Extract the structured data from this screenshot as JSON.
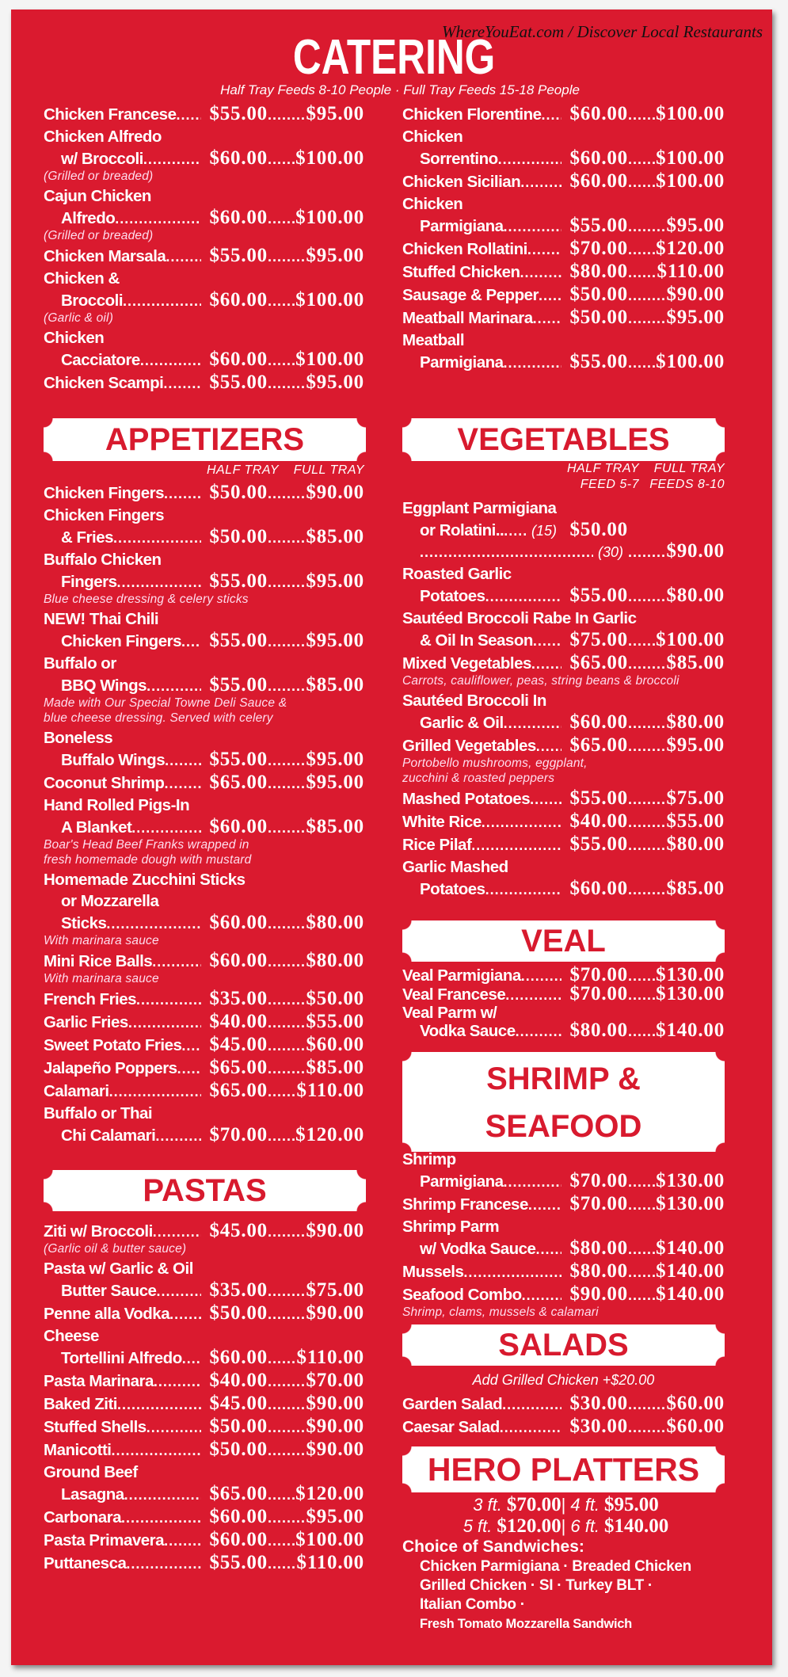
{
  "watermark": "WhereYouEat.com / Discover Local Restaurants",
  "title": "CATERING",
  "subtitle": "Half Tray Feeds 8-10 People · Full Tray Feeds 15-18 People",
  "colors": {
    "background": "#da1a2f",
    "text": "#ffffff",
    "header_box": "#ffffff",
    "header_text": "#d81a2e"
  },
  "sections": {
    "catering_left": {
      "items": [
        {
          "rows": [
            {
              "name": "Chicken Francese",
              "half": "$55.00",
              "full": "$95.00"
            }
          ]
        },
        {
          "rows": [
            {
              "name": "Chicken Alfredo"
            },
            {
              "name": "w/ Broccoli",
              "half": "$60.00",
              "full": "$100.00"
            }
          ],
          "note": [
            "(Grilled or breaded)"
          ]
        },
        {
          "rows": [
            {
              "name": "Cajun Chicken"
            },
            {
              "name": "Alfredo",
              "half": "$60.00",
              "full": "$100.00"
            }
          ],
          "note": [
            "(Grilled or breaded)"
          ]
        },
        {
          "rows": [
            {
              "name": "Chicken Marsala",
              "half": "$55.00",
              "full": "$95.00"
            }
          ]
        },
        {
          "rows": [
            {
              "name": "Chicken &"
            },
            {
              "name": "Broccoli",
              "half": "$60.00",
              "full": "$100.00"
            }
          ],
          "note": [
            "(Garlic & oil)"
          ]
        },
        {
          "rows": [
            {
              "name": "Chicken"
            },
            {
              "name": "Cacciatore",
              "half": "$60.00",
              "full": "$100.00"
            }
          ]
        },
        {
          "rows": [
            {
              "name": "Chicken Scampi",
              "half": "$55.00",
              "full": "$95.00"
            }
          ]
        }
      ]
    },
    "catering_right": {
      "items": [
        {
          "rows": [
            {
              "name": "Chicken Florentine",
              "half": "$60.00",
              "full": "$100.00"
            }
          ]
        },
        {
          "rows": [
            {
              "name": "Chicken"
            },
            {
              "name": "Sorrentino",
              "half": "$60.00",
              "full": "$100.00"
            }
          ]
        },
        {
          "rows": [
            {
              "name": "Chicken Sicilian",
              "half": "$60.00",
              "full": "$100.00"
            }
          ]
        },
        {
          "rows": [
            {
              "name": "Chicken"
            },
            {
              "name": "Parmigiana",
              "half": "$55.00",
              "full": "$95.00"
            }
          ]
        },
        {
          "rows": [
            {
              "name": "Chicken Rollatini",
              "half": "$70.00",
              "full": "$120.00"
            }
          ]
        },
        {
          "rows": [
            {
              "name": "Stuffed Chicken",
              "half": "$80.00",
              "full": "$110.00"
            }
          ]
        },
        {
          "rows": [
            {
              "name": "Sausage & Pepper",
              "half": "$50.00",
              "full": "$90.00"
            }
          ]
        },
        {
          "rows": [
            {
              "name": "Meatball Marinara",
              "half": "$50.00",
              "full": "$95.00"
            }
          ]
        },
        {
          "rows": [
            {
              "name": "Meatball"
            },
            {
              "name": "Parmigiana",
              "half": "$55.00",
              "full": "$100.00"
            }
          ]
        }
      ]
    },
    "appetizers": {
      "title": "APPETIZERS",
      "labels": [
        "HALF TRAY",
        "FULL TRAY"
      ],
      "items": [
        {
          "rows": [
            {
              "name": "Chicken Fingers",
              "half": "$50.00",
              "full": "$90.00"
            }
          ]
        },
        {
          "rows": [
            {
              "name": "Chicken Fingers"
            },
            {
              "name": "& Fries",
              "half": "$50.00",
              "full": "$85.00"
            }
          ]
        },
        {
          "rows": [
            {
              "name": "Buffalo Chicken"
            },
            {
              "name": "Fingers",
              "half": "$55.00",
              "full": "$95.00"
            }
          ],
          "note": [
            "Blue cheese dressing & celery sticks"
          ]
        },
        {
          "rows": [
            {
              "name": "NEW! Thai Chili"
            },
            {
              "name": "Chicken Fingers",
              "half": "$55.00",
              "full": "$95.00"
            }
          ]
        },
        {
          "rows": [
            {
              "name": "Buffalo or"
            },
            {
              "name": "BBQ Wings",
              "half": "$55.00",
              "full": "$85.00"
            }
          ],
          "note": [
            "Made with Our Special Towne Deli Sauce &",
            "blue cheese dressing. Served with celery"
          ]
        },
        {
          "rows": [
            {
              "name": "Boneless"
            },
            {
              "name": "Buffalo Wings",
              "half": "$55.00",
              "full": "$95.00"
            }
          ]
        },
        {
          "rows": [
            {
              "name": "Coconut Shrimp",
              "half": "$65.00",
              "full": "$95.00"
            }
          ]
        },
        {
          "rows": [
            {
              "name": "Hand Rolled Pigs-In"
            },
            {
              "name": "A Blanket",
              "half": "$60.00",
              "full": "$85.00"
            }
          ],
          "note": [
            "Boar's Head Beef Franks wrapped in",
            "fresh homemade dough with mustard"
          ]
        },
        {
          "rows": [
            {
              "name": "Homemade Zucchini Sticks"
            },
            {
              "name": "or Mozzarella"
            },
            {
              "name": "Sticks",
              "half": "$60.00",
              "full": "$80.00"
            }
          ],
          "note": [
            "With marinara sauce"
          ]
        },
        {
          "rows": [
            {
              "name": "Mini Rice Balls",
              "half": "$60.00",
              "full": "$80.00"
            }
          ],
          "note": [
            "With marinara sauce"
          ]
        },
        {
          "rows": [
            {
              "name": "French Fries",
              "half": "$35.00",
              "full": "$50.00"
            }
          ]
        },
        {
          "rows": [
            {
              "name": "Garlic Fries",
              "half": "$40.00",
              "full": "$55.00"
            }
          ]
        },
        {
          "rows": [
            {
              "name": "Sweet Potato Fries",
              "half": "$45.00",
              "full": "$60.00"
            }
          ]
        },
        {
          "rows": [
            {
              "name": "Jalapeño Poppers",
              "half": "$65.00",
              "full": "$85.00"
            }
          ]
        },
        {
          "rows": [
            {
              "name": "Calamari",
              "half": "$65.00",
              "full": "$110.00"
            }
          ]
        },
        {
          "rows": [
            {
              "name": "Buffalo or Thai"
            },
            {
              "name": "Chi Calamari",
              "half": "$70.00",
              "full": "$120.00"
            }
          ]
        }
      ]
    },
    "pastas": {
      "title": "PASTAS",
      "items": [
        {
          "rows": [
            {
              "name": "Ziti w/ Broccoli",
              "half": "$45.00",
              "full": "$90.00"
            }
          ],
          "note": [
            "(Garlic oil & butter sauce)"
          ]
        },
        {
          "rows": [
            {
              "name": "Pasta w/ Garlic & Oil"
            },
            {
              "name": "Butter Sauce",
              "half": "$35.00",
              "full": "$75.00"
            }
          ]
        },
        {
          "rows": [
            {
              "name": "Penne alla Vodka",
              "half": "$50.00",
              "full": "$90.00"
            }
          ]
        },
        {
          "rows": [
            {
              "name": "Cheese"
            },
            {
              "name": "Tortellini Alfredo",
              "half": "$60.00",
              "full": "$110.00"
            }
          ]
        },
        {
          "rows": [
            {
              "name": "Pasta Marinara",
              "half": "$40.00",
              "full": "$70.00"
            }
          ]
        },
        {
          "rows": [
            {
              "name": "Baked Ziti",
              "half": "$45.00",
              "full": "$90.00"
            }
          ]
        },
        {
          "rows": [
            {
              "name": "Stuffed Shells",
              "half": "$50.00",
              "full": "$90.00"
            }
          ]
        },
        {
          "rows": [
            {
              "name": "Manicotti",
              "half": "$50.00",
              "full": "$90.00"
            }
          ]
        },
        {
          "rows": [
            {
              "name": "Ground Beef"
            },
            {
              "name": "Lasagna",
              "half": "$65.00",
              "full": "$120.00"
            }
          ]
        },
        {
          "rows": [
            {
              "name": "Carbonara",
              "half": "$60.00",
              "full": "$95.00"
            }
          ]
        },
        {
          "rows": [
            {
              "name": "Pasta Primavera",
              "half": "$60.00",
              "full": "$100.00"
            }
          ]
        },
        {
          "rows": [
            {
              "name": "Puttanesca",
              "half": "$55.00",
              "full": "$110.00"
            }
          ]
        }
      ]
    },
    "vegetables": {
      "title": "VEGETABLES",
      "labels": [
        "HALF TRAY",
        "FULL TRAY"
      ],
      "sublabels": [
        "FEED 5-7",
        "FEEDS 8-10"
      ],
      "items": [
        {
          "rows": [
            {
              "name": "Eggplant Parmigiana"
            },
            {
              "name": "or Rolatini..",
              "qty": "(15)",
              "half": "$50.00"
            },
            {
              "name": "",
              "qty": "(30)",
              "full": "$90.00"
            }
          ]
        },
        {
          "rows": [
            {
              "name": "Roasted Garlic"
            },
            {
              "name": "Potatoes",
              "half": "$55.00",
              "full": "$80.00"
            }
          ]
        },
        {
          "rows": [
            {
              "name": "Sautéed Broccoli Rabe In Garlic"
            },
            {
              "name": "& Oil In Season",
              "half": "$75.00",
              "full": "$100.00"
            }
          ]
        },
        {
          "rows": [
            {
              "name": "Mixed Vegetables",
              "half": "$65.00",
              "full": "$85.00"
            }
          ],
          "note": [
            "Carrots, cauliflower, peas, string beans & broccoli"
          ]
        },
        {
          "rows": [
            {
              "name": "Sautéed Broccoli In"
            },
            {
              "name": "Garlic & Oil",
              "half": "$60.00",
              "full": "$80.00"
            }
          ]
        },
        {
          "rows": [
            {
              "name": "Grilled Vegetables",
              "half": "$65.00",
              "full": "$95.00"
            }
          ],
          "note": [
            "Portobello mushrooms, eggplant,",
            "zucchini & roasted peppers"
          ]
        },
        {
          "rows": [
            {
              "name": "Mashed Potatoes",
              "half": "$55.00",
              "full": "$75.00"
            }
          ]
        },
        {
          "rows": [
            {
              "name": "White Rice",
              "half": "$40.00",
              "full": "$55.00"
            }
          ]
        },
        {
          "rows": [
            {
              "name": "Rice Pilaf",
              "half": "$55.00",
              "full": "$80.00"
            }
          ]
        },
        {
          "rows": [
            {
              "name": "Garlic Mashed"
            },
            {
              "name": "Potatoes",
              "half": "$60.00",
              "full": "$85.00"
            }
          ]
        }
      ]
    },
    "veal": {
      "title": "VEAL",
      "items": [
        {
          "rows": [
            {
              "name": "Veal Parmigiana",
              "half": "$70.00",
              "full": "$130.00"
            }
          ]
        },
        {
          "rows": [
            {
              "name": "Veal Francese",
              "half": "$70.00",
              "full": "$130.00"
            }
          ]
        },
        {
          "rows": [
            {
              "name": "Veal Parm w/"
            },
            {
              "name": "Vodka Sauce",
              "half": "$80.00",
              "full": "$140.00"
            }
          ]
        }
      ]
    },
    "seafood": {
      "title_lines": [
        "SHRIMP &",
        "SEAFOOD"
      ],
      "items": [
        {
          "rows": [
            {
              "name": "Shrimp"
            },
            {
              "name": "Parmigiana",
              "half": "$70.00",
              "full": "$130.00"
            }
          ]
        },
        {
          "rows": [
            {
              "name": "Shrimp Francese",
              "half": "$70.00",
              "full": "$130.00"
            }
          ]
        },
        {
          "rows": [
            {
              "name": "Shrimp Parm"
            },
            {
              "name": "w/ Vodka Sauce",
              "half": "$80.00",
              "full": "$140.00"
            }
          ]
        },
        {
          "rows": [
            {
              "name": "Mussels",
              "half": "$80.00",
              "full": "$140.00"
            }
          ]
        },
        {
          "rows": [
            {
              "name": "Seafood Combo",
              "half": "$90.00",
              "full": "$140.00"
            }
          ],
          "note": [
            "Shrimp, clams, mussels & calamari"
          ]
        }
      ]
    },
    "salads": {
      "title": "SALADS",
      "addon": "Add Grilled Chicken +$20.00",
      "items": [
        {
          "rows": [
            {
              "name": "Garden Salad",
              "half": "$30.00",
              "full": "$60.00"
            }
          ]
        },
        {
          "rows": [
            {
              "name": "Caesar Salad",
              "half": "$30.00",
              "full": "$60.00"
            }
          ]
        }
      ]
    },
    "hero": {
      "title": "HERO PLATTERS",
      "separator": "|",
      "prices": [
        [
          {
            "size": "3 ft.",
            "price": "$70.00"
          },
          {
            "size": "4 ft.",
            "price": "$95.00"
          }
        ],
        [
          {
            "size": "5 ft.",
            "price": "$120.00"
          },
          {
            "size": "6 ft.",
            "price": "$140.00"
          }
        ]
      ],
      "choice_label": "Choice of Sandwiches:",
      "choices": [
        "Chicken Parmigiana · Breaded Chicken",
        "Grilled Chicken · SI · Turkey BLT ·",
        "Italian Combo ·",
        "Fresh Tomato Mozzarella Sandwich"
      ]
    }
  }
}
